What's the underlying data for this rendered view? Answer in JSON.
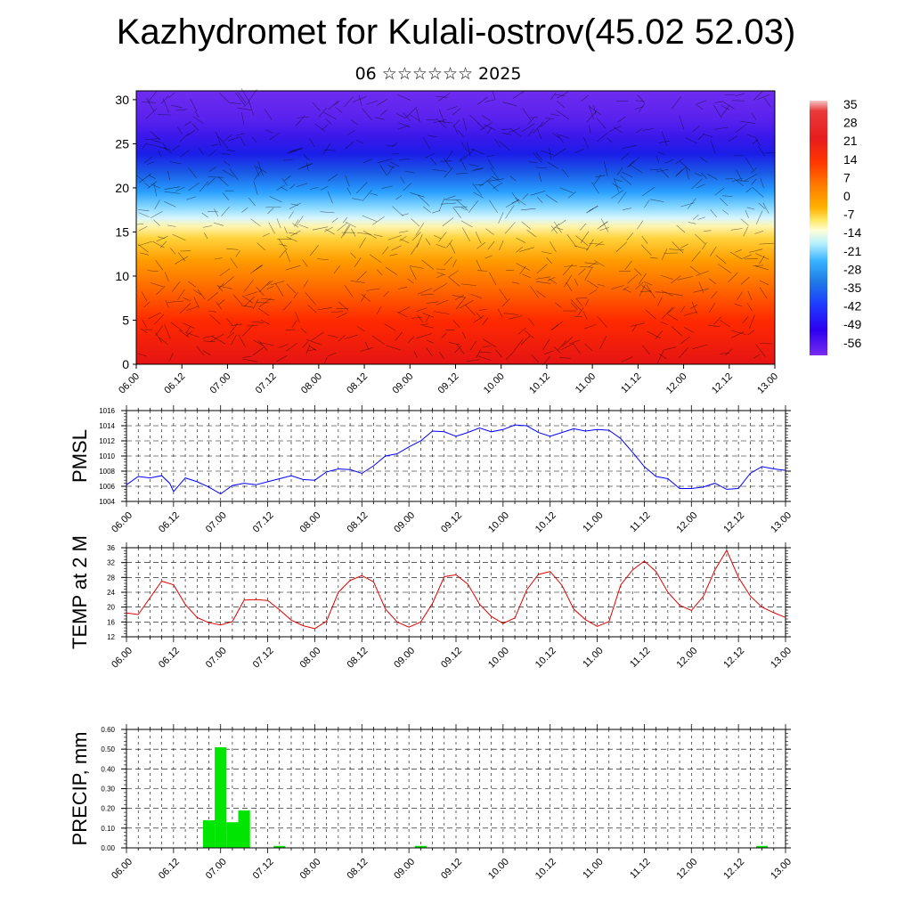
{
  "header": {
    "title": "Kazhydromet for Kulali-ostrov(45.02 52.03)",
    "subtitle": "06 ☆☆☆☆☆☆ 2025"
  },
  "chart_data": [
    {
      "type": "heatmap",
      "name": "cross-section",
      "y_ticks": [
        "0",
        "5",
        "10",
        "15",
        "20",
        "25",
        "30"
      ],
      "ylim": [
        0,
        31
      ],
      "x_ticks": [
        "06.00",
        "06.12",
        "07.00",
        "07.12",
        "08.00",
        "08.12",
        "09.00",
        "09.12",
        "10.00",
        "10.12",
        "11.00",
        "11.12",
        "12.00",
        "12.12",
        "13.00"
      ],
      "colorbar_labels": [
        "35",
        "28",
        "21",
        "14",
        "7",
        "0",
        "-7",
        "-14",
        "-21",
        "-28",
        "-35",
        "-42",
        "-49",
        "-56"
      ],
      "colors": [
        "#f2c6c6",
        "#e81c1c",
        "#ff3b00",
        "#ff7a00",
        "#ffb200",
        "#ffe866",
        "#ffffd9",
        "#b9f0ff",
        "#37b3ff",
        "#1f7ae6",
        "#1e3cff",
        "#2b00f0",
        "#7a2bf0"
      ]
    },
    {
      "type": "line",
      "name": "pmsl",
      "ylabel": "PMSL",
      "y_ticks": [
        "1004",
        "1006",
        "1008",
        "1010",
        "1012",
        "1014",
        "1016"
      ],
      "ylim": [
        1004,
        1016
      ],
      "x_ticks": [
        "06.00",
        "06.12",
        "07.00",
        "07.12",
        "08.00",
        "08.12",
        "09.00",
        "09.12",
        "10.00",
        "10.12",
        "11.00",
        "11.12",
        "12.00",
        "12.12",
        "13.00"
      ],
      "color": "#0000ff",
      "x": [
        0,
        3,
        6,
        9,
        11,
        12,
        15,
        18,
        21,
        24,
        27,
        30,
        33,
        36,
        39,
        42,
        45,
        48,
        51,
        54,
        57,
        60,
        63,
        66,
        69,
        72,
        75,
        78,
        81,
        84,
        87,
        90,
        93,
        96,
        99,
        102,
        105,
        108,
        111,
        114,
        117,
        120,
        123,
        126,
        129,
        132,
        135,
        138,
        141,
        144,
        147,
        150,
        153,
        156,
        159,
        162,
        165,
        168
      ],
      "values": [
        1006.2,
        1007.3,
        1007.1,
        1007.4,
        1006.4,
        1005.3,
        1007.1,
        1006.6,
        1005.9,
        1005,
        1006.1,
        1006.4,
        1006.2,
        1006.6,
        1007.0,
        1007.4,
        1006.9,
        1006.8,
        1007.9,
        1008.3,
        1008.2,
        1007.7,
        1008.7,
        1010.0,
        1010.3,
        1011.2,
        1012.0,
        1013.3,
        1013.2,
        1012.6,
        1013.1,
        1013.7,
        1013.2,
        1013.5,
        1014.1,
        1014.0,
        1013.1,
        1012.6,
        1013.1,
        1013.6,
        1013.3,
        1013.5,
        1013.4,
        1012.3,
        1010.5,
        1008.6,
        1007.3,
        1007.0,
        1005.7,
        1005.7,
        1005.9,
        1006.4,
        1005.6,
        1005.7,
        1007.7,
        1008.6,
        1008.3,
        1008.1
      ]
    },
    {
      "type": "line",
      "name": "temperature",
      "ylabel": "TEMP at 2 M",
      "y_ticks": [
        "12",
        "16",
        "20",
        "24",
        "28",
        "32",
        "36"
      ],
      "ylim": [
        12,
        36
      ],
      "x_ticks": [
        "06.00",
        "06.12",
        "07.00",
        "07.12",
        "08.00",
        "08.12",
        "09.00",
        "09.12",
        "10.00",
        "10.12",
        "11.00",
        "11.12",
        "12.00",
        "12.12",
        "13.00"
      ],
      "color": "#e00000",
      "x": [
        0,
        3,
        9,
        12,
        15,
        18,
        21,
        24,
        27,
        30,
        33,
        36,
        39,
        42,
        45,
        48,
        51,
        54,
        57,
        60,
        63,
        66,
        69,
        72,
        75,
        78,
        81,
        84,
        87,
        90,
        93,
        96,
        99,
        102,
        105,
        108,
        111,
        114,
        117,
        120,
        123,
        126,
        129,
        132,
        135,
        138,
        141,
        144,
        147,
        150,
        153,
        156,
        159,
        162,
        165,
        168
      ],
      "values": [
        18.4,
        18.0,
        27.0,
        26.0,
        20.7,
        17.2,
        15.8,
        15.2,
        16.1,
        21.9,
        22.0,
        21.8,
        19.3,
        16.5,
        15.0,
        14.2,
        16.2,
        24.0,
        27.2,
        28.5,
        26.8,
        19.5,
        16.0,
        14.6,
        16.0,
        21.0,
        28.2,
        28.7,
        26.2,
        20.8,
        17.5,
        15.6,
        17.1,
        24.6,
        28.8,
        29.6,
        25.9,
        19.5,
        16.6,
        14.8,
        16.1,
        26.0,
        30.0,
        32.4,
        29.6,
        24.0,
        20.5,
        19.1,
        22.8,
        30.0,
        35.3,
        28.0,
        23.0,
        20.0,
        18.5,
        17.2
      ]
    },
    {
      "type": "bar",
      "name": "precipitation",
      "ylabel": "PRECIP, mm",
      "y_ticks": [
        "0.00",
        "0.10",
        "0.20",
        "0.30",
        "0.40",
        "0.50",
        "0.60"
      ],
      "ylim": [
        0,
        0.6
      ],
      "x_ticks": [
        "06.00",
        "06.12",
        "07.00",
        "07.12",
        "08.00",
        "08.12",
        "09.00",
        "09.12",
        "10.00",
        "10.12",
        "11.00",
        "11.12",
        "12.00",
        "12.12",
        "13.00"
      ],
      "color": "#00e600",
      "x": [
        21,
        24,
        27,
        30,
        39,
        75,
        162
      ],
      "values": [
        0.14,
        0.51,
        0.13,
        0.19,
        0.01,
        0.01,
        0.01
      ]
    }
  ]
}
